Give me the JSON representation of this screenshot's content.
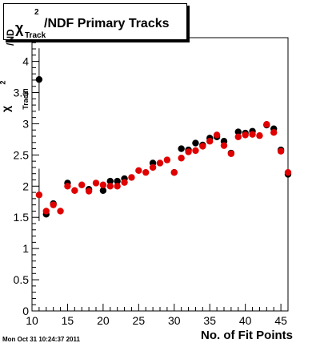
{
  "chart_data": {
    "type": "scatter",
    "title_parts": {
      "chi": "χ",
      "sup": "2",
      "sub": "Track",
      "rest": "/NDF Primary Tracks"
    },
    "xlabel": "No. of Fit Points",
    "ylabel_parts": {
      "chi": "χ",
      "sup": "2",
      "sub": "Track",
      "rest": "/ND"
    },
    "xlim": [
      10,
      46
    ],
    "ylim": [
      0,
      4.38
    ],
    "x_ticks": [
      10,
      15,
      20,
      25,
      30,
      35,
      40,
      45
    ],
    "y_ticks": [
      0,
      0.5,
      1,
      1.5,
      2,
      2.5,
      3,
      3.5,
      4
    ],
    "y_tick_labels": [
      "0",
      "0.5",
      "1",
      "1.5",
      "2",
      "2.5",
      "3",
      "3.5",
      "4"
    ],
    "grid": false,
    "series": [
      {
        "color": "#000000",
        "points": [
          {
            "x": 11,
            "y": 3.71,
            "err": 0.5
          },
          {
            "x": 12,
            "y": 1.55
          },
          {
            "x": 13,
            "y": 1.72
          },
          {
            "x": 15,
            "y": 2.05
          },
          {
            "x": 18,
            "y": 1.95
          },
          {
            "x": 20,
            "y": 1.93
          },
          {
            "x": 21,
            "y": 2.08
          },
          {
            "x": 22,
            "y": 2.08
          },
          {
            "x": 23,
            "y": 2.12
          },
          {
            "x": 27,
            "y": 2.37
          },
          {
            "x": 30,
            "y": 2.22
          },
          {
            "x": 31,
            "y": 2.6
          },
          {
            "x": 32,
            "y": 2.58
          },
          {
            "x": 33,
            "y": 2.69
          },
          {
            "x": 34,
            "y": 2.66
          },
          {
            "x": 35,
            "y": 2.77
          },
          {
            "x": 36,
            "y": 2.79
          },
          {
            "x": 37,
            "y": 2.72
          },
          {
            "x": 38,
            "y": 2.53
          },
          {
            "x": 39,
            "y": 2.87
          },
          {
            "x": 40,
            "y": 2.85
          },
          {
            "x": 41,
            "y": 2.88
          },
          {
            "x": 43,
            "y": 2.98
          },
          {
            "x": 44,
            "y": 2.92
          },
          {
            "x": 45,
            "y": 2.58
          },
          {
            "x": 46,
            "y": 2.19
          }
        ]
      },
      {
        "color": "#e00000",
        "points": [
          {
            "x": 11,
            "y": 1.86,
            "err": 0.42
          },
          {
            "x": 12,
            "y": 1.6
          },
          {
            "x": 13,
            "y": 1.7
          },
          {
            "x": 14,
            "y": 1.6
          },
          {
            "x": 15,
            "y": 2.0
          },
          {
            "x": 16,
            "y": 1.93
          },
          {
            "x": 17,
            "y": 2.02
          },
          {
            "x": 18,
            "y": 1.92
          },
          {
            "x": 19,
            "y": 2.05
          },
          {
            "x": 20,
            "y": 2.02
          },
          {
            "x": 21,
            "y": 2.0
          },
          {
            "x": 22,
            "y": 2.0
          },
          {
            "x": 23,
            "y": 2.06
          },
          {
            "x": 24,
            "y": 2.14
          },
          {
            "x": 25,
            "y": 2.25
          },
          {
            "x": 26,
            "y": 2.22
          },
          {
            "x": 27,
            "y": 2.3
          },
          {
            "x": 28,
            "y": 2.37
          },
          {
            "x": 29,
            "y": 2.42
          },
          {
            "x": 30,
            "y": 2.22
          },
          {
            "x": 31,
            "y": 2.45
          },
          {
            "x": 32,
            "y": 2.55
          },
          {
            "x": 33,
            "y": 2.57
          },
          {
            "x": 34,
            "y": 2.64
          },
          {
            "x": 35,
            "y": 2.72
          },
          {
            "x": 36,
            "y": 2.82
          },
          {
            "x": 37,
            "y": 2.65
          },
          {
            "x": 38,
            "y": 2.52
          },
          {
            "x": 39,
            "y": 2.79
          },
          {
            "x": 40,
            "y": 2.82
          },
          {
            "x": 41,
            "y": 2.83
          },
          {
            "x": 42,
            "y": 2.81
          },
          {
            "x": 43,
            "y": 2.99
          },
          {
            "x": 44,
            "y": 2.86
          },
          {
            "x": 45,
            "y": 2.56
          },
          {
            "x": 46,
            "y": 2.22
          }
        ]
      }
    ]
  },
  "timestamp": "Mon Oct 31 10:24:37 2011"
}
